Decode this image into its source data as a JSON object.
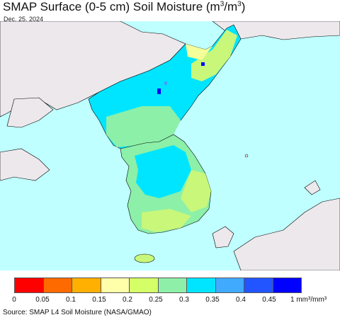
{
  "header": {
    "title_prefix": "SMAP Surface (0-5 cm) Soil Moisture (m",
    "title_sup1": "3",
    "title_mid": "/m",
    "title_sup2": "3",
    "title_suffix": ")",
    "date": "Dec. 25, 2024"
  },
  "colors": {
    "ocean": "#bfffff",
    "land_outside": "#ece8ec",
    "coastline": "#000000",
    "wet": "#00e5ff",
    "moist": "#8cf0a8",
    "medium": "#c8f77a",
    "dry": "#f5ff9a",
    "very_wet": "#40a0ff",
    "saturated": "#0000ff"
  },
  "legend": {
    "colors": [
      "#ff0000",
      "#ff6a00",
      "#ffb000",
      "#ffffaa",
      "#d4ff66",
      "#8ef0a8",
      "#00e5ff",
      "#40aaff",
      "#2255ff",
      "#0000ff"
    ],
    "ticks": [
      "0",
      "0.05",
      "0.1",
      "0.15",
      "0.2",
      "0.25",
      "0.3",
      "0.35",
      "0.4",
      "0.45",
      "1 mm³/mm³"
    ]
  },
  "footer": {
    "source": "Source: SMAP L4 Soil Moisture (NASA/GMAO)"
  }
}
